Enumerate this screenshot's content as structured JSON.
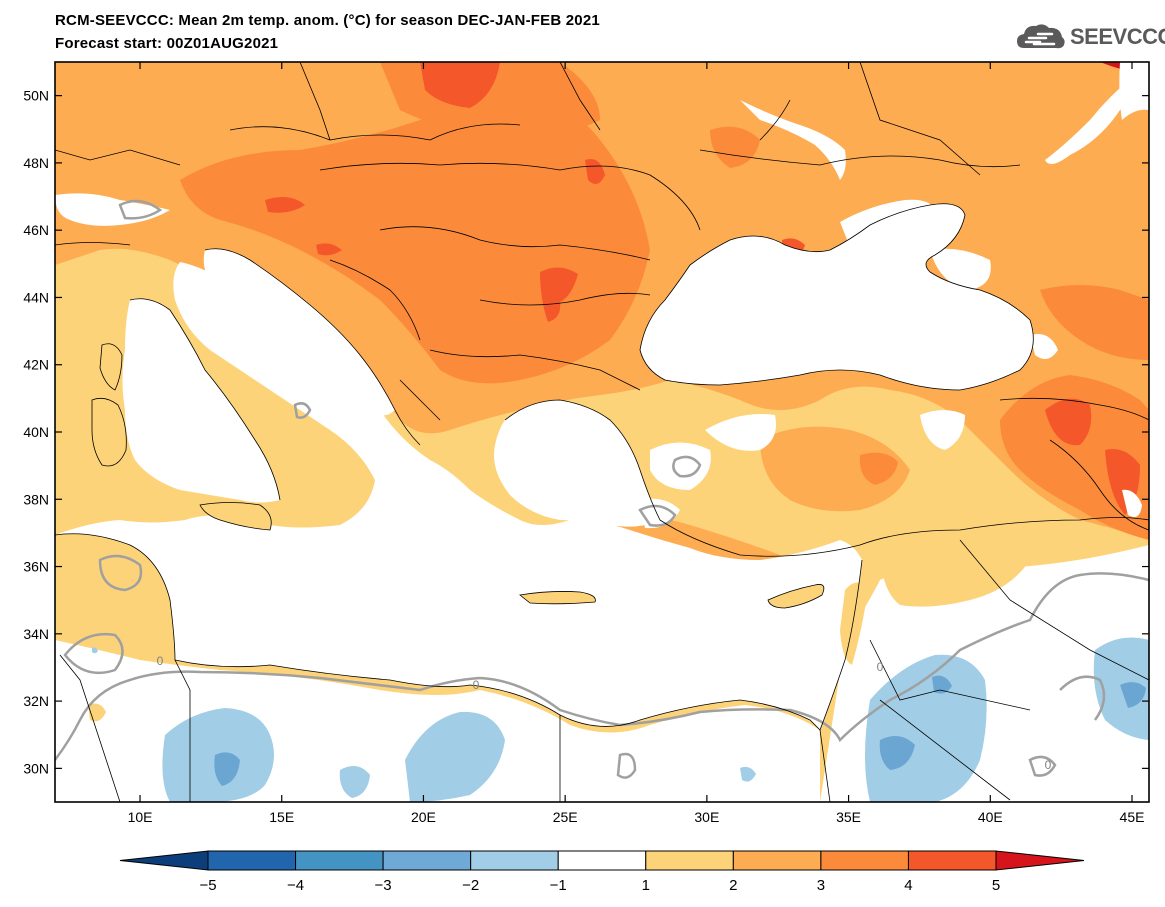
{
  "header": {
    "title": "RCM-SEEVCCC: Mean 2m temp. anom. (°C) for season DEC-JAN-FEB 2021",
    "forecast_start": "Forecast start: 00Z01AUG2021"
  },
  "logo": {
    "text": "SEEVCCC",
    "icon": "cloud-icon"
  },
  "map": {
    "lat_labels": [
      "50N",
      "48N",
      "46N",
      "44N",
      "42N",
      "40N",
      "38N",
      "36N",
      "34N",
      "32N",
      "30N"
    ],
    "lon_labels": [
      "10E",
      "15E",
      "20E",
      "25E",
      "30E",
      "35E",
      "40E",
      "45E"
    ],
    "lon_range": [
      7,
      45.6
    ],
    "lat_range": [
      29,
      51
    ],
    "contour_label": "0",
    "colors": {
      "land_base": "#fdd37a",
      "anom_2_3": "#fdac52",
      "anom_3_4": "#fb8b3a",
      "anom_4_5": "#f4582a",
      "anom_gt5": "#d6141b",
      "anom_neg1_neg2": "#a1cde6",
      "anom_neg2_neg3": "#6ba6d3",
      "sea": "#ffffff",
      "zero_contour": "#a0a0a0",
      "borders": "#000000"
    }
  },
  "colorbar": {
    "labels": [
      "−5",
      "−4",
      "−3",
      "−2",
      "−1",
      "1",
      "2",
      "3",
      "4",
      "5"
    ],
    "colors": [
      "#0b3e7a",
      "#2166ac",
      "#4393c3",
      "#6fa9d8",
      "#a1cde6",
      "#ffffff",
      "#fdd37a",
      "#fdac52",
      "#fb8b3a",
      "#f4582a",
      "#d6141b"
    ]
  }
}
